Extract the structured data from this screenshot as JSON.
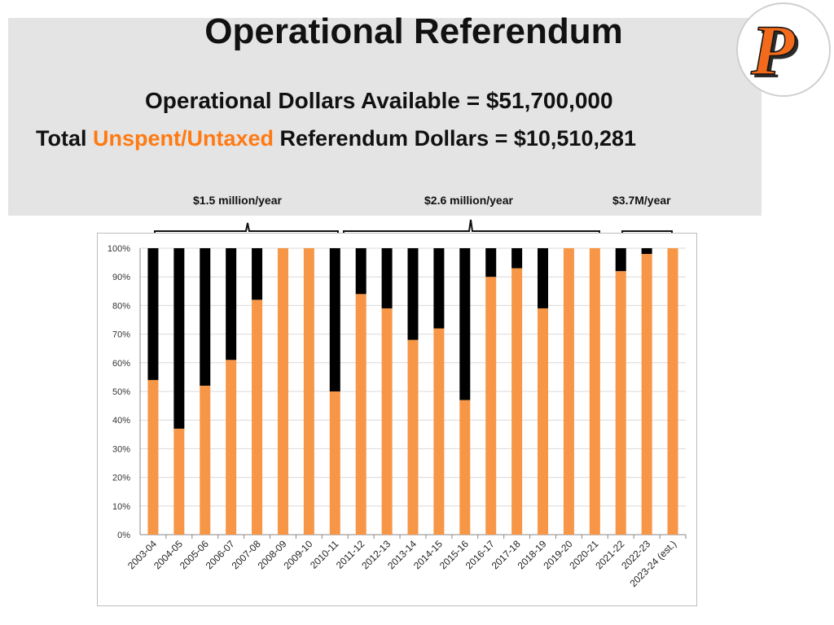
{
  "header": {
    "title": "Operational Referendum",
    "subtitle": "Operational Dollars Available = $51,700,000",
    "total_prefix": "Total ",
    "total_highlight": "Unspent/Untaxed",
    "total_suffix": " Referendum Dollars = $10,510,281"
  },
  "periods": [
    {
      "label": "$1.5 million/year"
    },
    {
      "label": "$2.6 million/year"
    },
    {
      "label": "$3.7M/year"
    }
  ],
  "logo": {
    "letter": "P"
  },
  "colors": {
    "accent": "#ff7a12",
    "unspent": "#f79646",
    "spent": "#000000",
    "banner": "#e4e4e4"
  },
  "chart_data": {
    "type": "bar",
    "stacked": true,
    "categories": [
      "2003-04",
      "2004-05",
      "2005-06",
      "2006-07",
      "2007-08",
      "2008-09",
      "2009-10",
      "2010-11",
      "2011-12",
      "2012-13",
      "2013-14",
      "2014-15",
      "2015-16",
      "2016-17",
      "2017-18",
      "2018-19",
      "2019-20",
      "2020-21",
      "2021-22",
      "2022-23",
      "2023-24 (est.)"
    ],
    "series": [
      {
        "name": "Unspent/Untaxed",
        "color": "#f79646",
        "values": [
          54,
          37,
          52,
          61,
          82,
          100,
          100,
          50,
          84,
          79,
          68,
          72,
          47,
          90,
          93,
          79,
          100,
          100,
          92,
          98,
          100
        ]
      },
      {
        "name": "Spent",
        "color": "#000000",
        "values": [
          46,
          63,
          48,
          39,
          18,
          0,
          0,
          50,
          16,
          21,
          32,
          28,
          53,
          10,
          7,
          21,
          0,
          0,
          8,
          2,
          0
        ]
      }
    ],
    "y_ticks": [
      "0%",
      "10%",
      "20%",
      "30%",
      "40%",
      "50%",
      "60%",
      "70%",
      "80%",
      "90%",
      "100%"
    ],
    "ylim": [
      0,
      100
    ],
    "grid": true,
    "title": "",
    "xlabel": "",
    "ylabel": ""
  }
}
